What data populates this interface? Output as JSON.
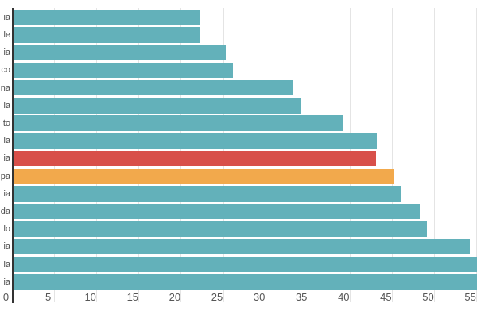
{
  "chart_data": {
    "type": "bar",
    "orientation": "horizontal",
    "title": "",
    "xlabel": "",
    "ylabel": "",
    "x_axis": {
      "min": 0,
      "max": 55.2,
      "ticks": [
        0,
        5,
        10,
        15,
        20,
        25,
        30,
        35,
        40,
        45,
        50,
        55
      ],
      "grid": true
    },
    "y_axis": {
      "note": "category labels are truncated by the left edge of the viewport; only the last letters are visible"
    },
    "bars": [
      {
        "label_fragment": "ia",
        "value": 22.2,
        "role": "default"
      },
      {
        "label_fragment": "le",
        "value": 22.1,
        "role": "default"
      },
      {
        "label_fragment": "ia",
        "value": 25.2,
        "role": "default"
      },
      {
        "label_fragment": "co",
        "value": 26.1,
        "role": "default"
      },
      {
        "label_fragment": "na",
        "value": 33.1,
        "role": "default"
      },
      {
        "label_fragment": "ia",
        "value": 34.1,
        "role": "default"
      },
      {
        "label_fragment": "to",
        "value": 39.1,
        "role": "default"
      },
      {
        "label_fragment": "ia",
        "value": 43.1,
        "role": "default"
      },
      {
        "label_fragment": "ia",
        "value": 43.0,
        "role": "highlight-red"
      },
      {
        "label_fragment": "pa",
        "value": 45.1,
        "role": "highlight-orange"
      },
      {
        "label_fragment": "ia",
        "value": 46.0,
        "role": "default"
      },
      {
        "label_fragment": "da",
        "value": 48.2,
        "role": "default"
      },
      {
        "label_fragment": "lo",
        "value": 49.1,
        "role": "default"
      },
      {
        "label_fragment": "ia",
        "value": 54.1,
        "role": "default"
      },
      {
        "label_fragment": "ia",
        "value": 55.3,
        "role": "default",
        "clipped_at_right_edge": true
      },
      {
        "label_fragment": "ia",
        "value": 55.4,
        "role": "default",
        "clipped_at_right_edge": true
      }
    ],
    "colors": {
      "default": "#63b1ba",
      "highlight-red": "#d8504a",
      "highlight-orange": "#f2a94c",
      "gridline": "#e4e4e4",
      "axis_line": "#333333",
      "tick_label": "#565656",
      "category_label": "#4b4b4b"
    },
    "legend": "none"
  }
}
